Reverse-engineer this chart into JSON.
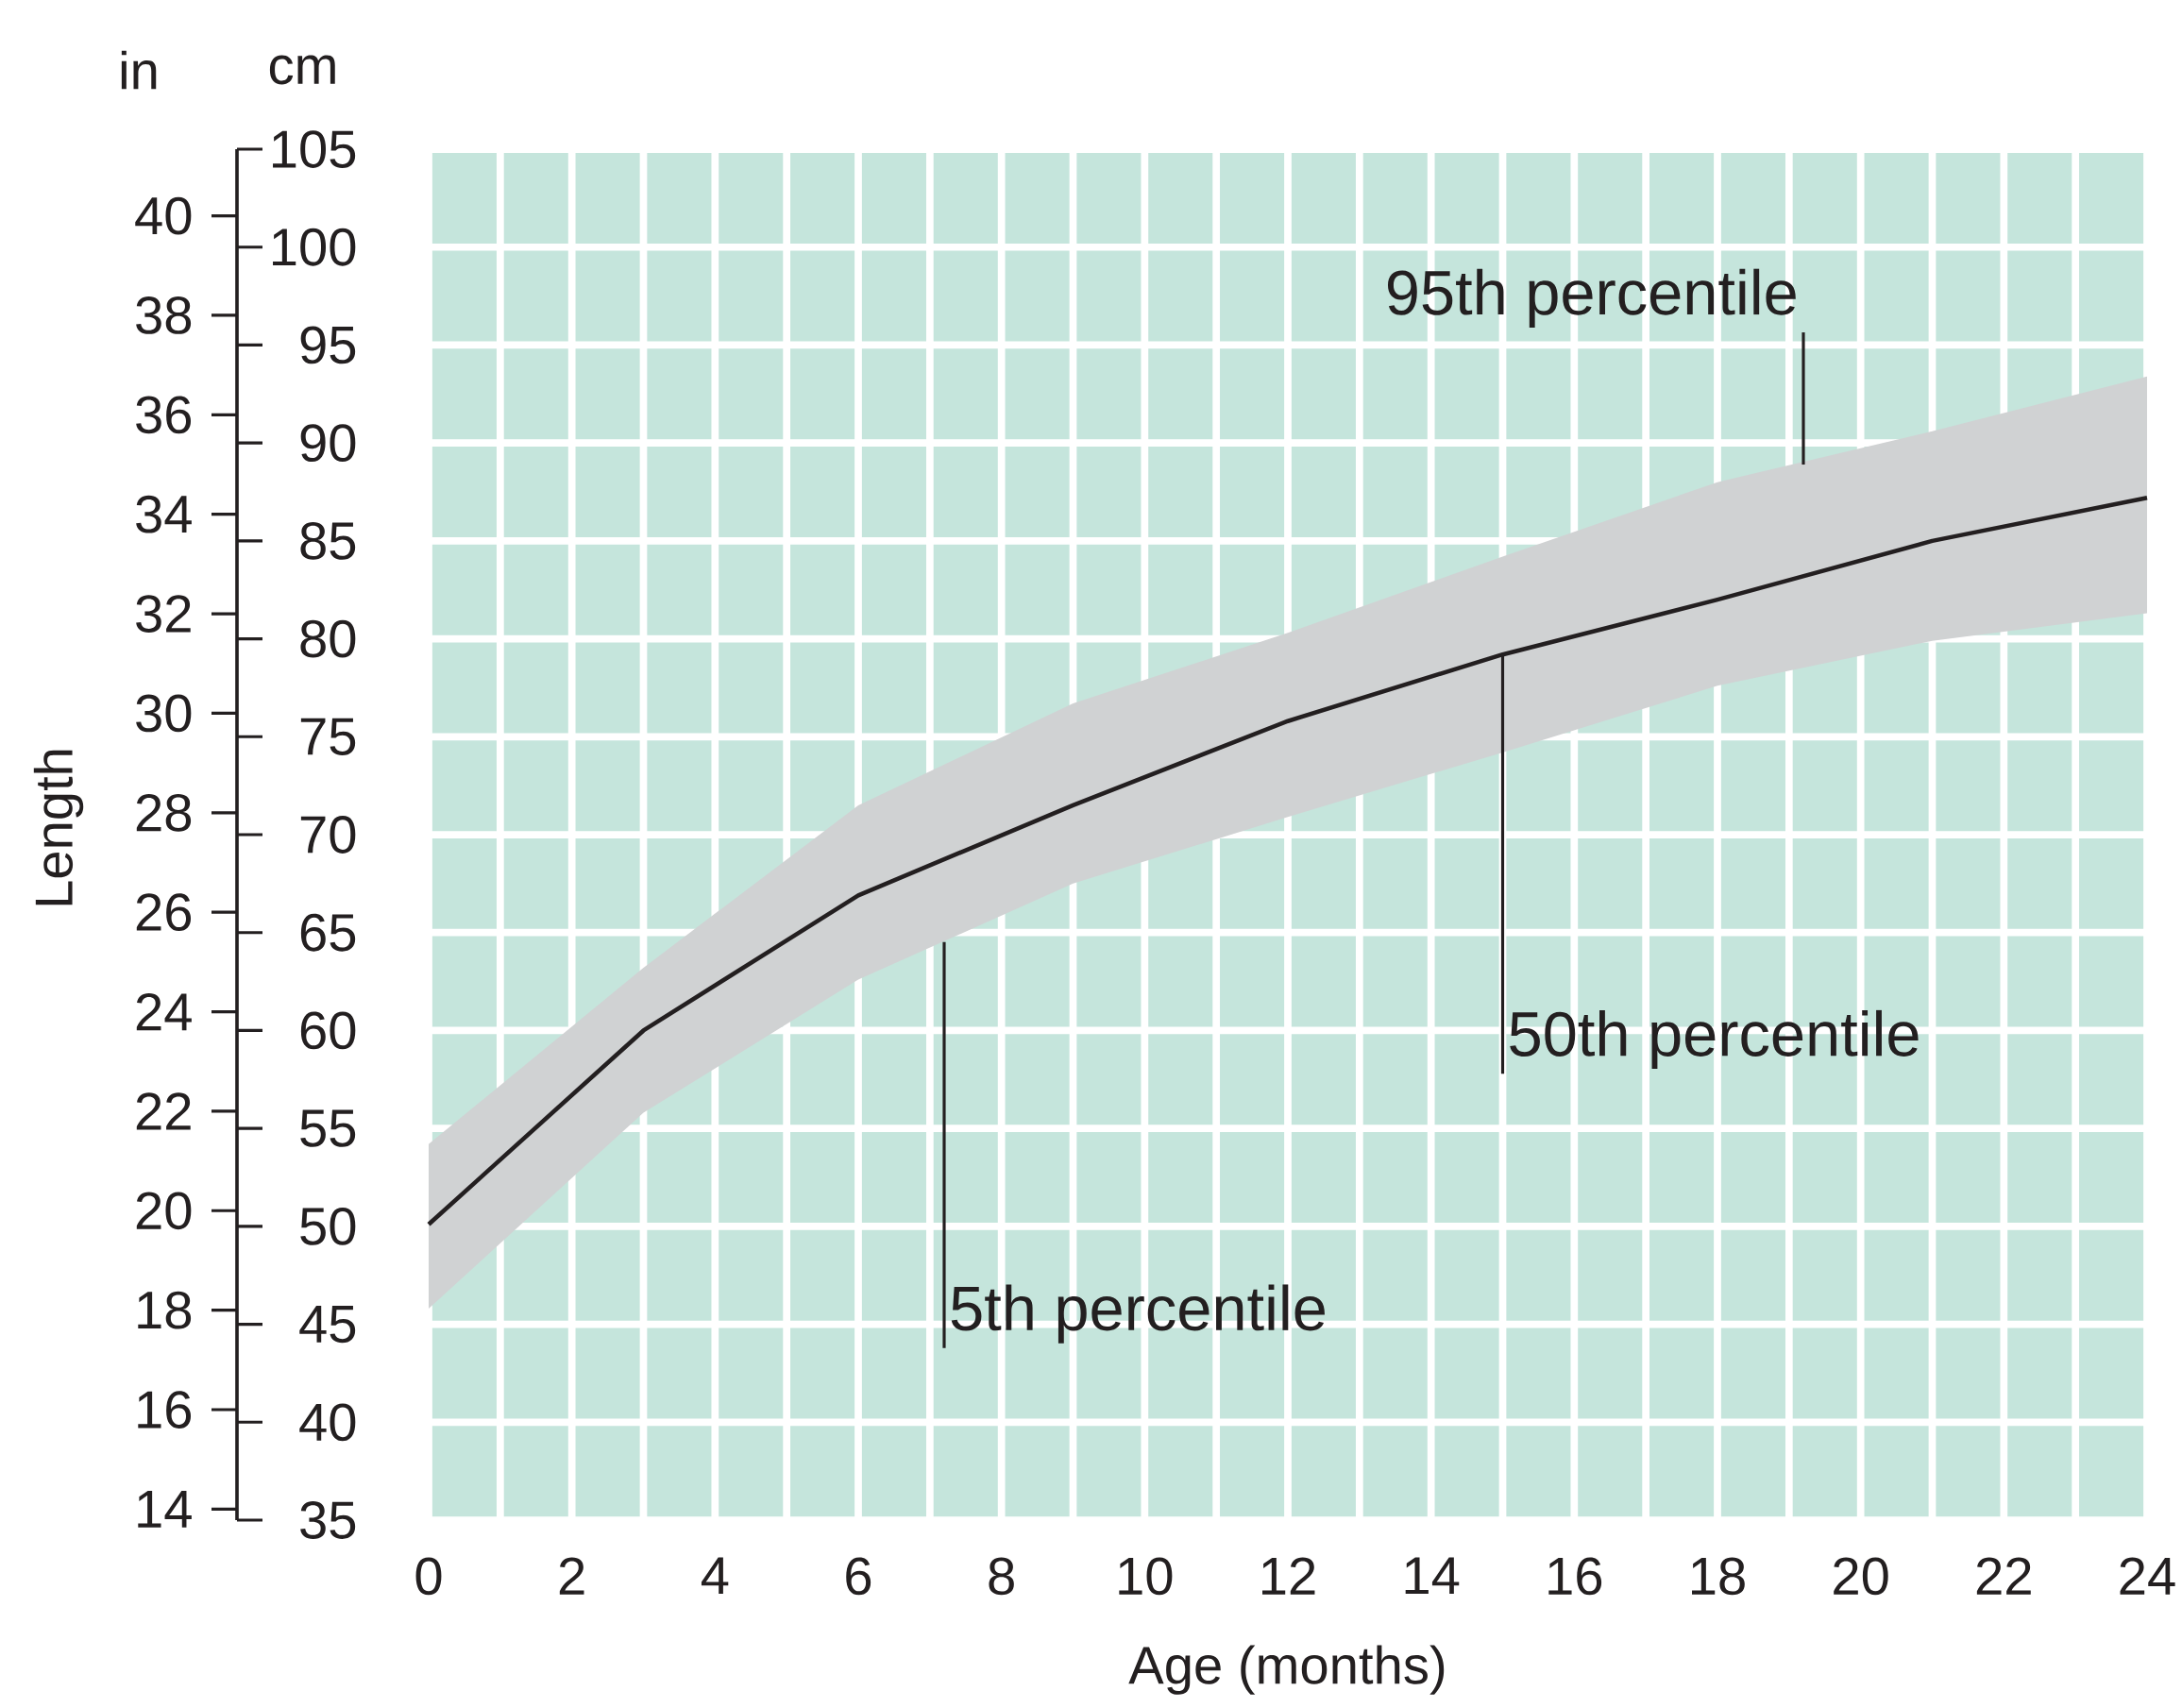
{
  "chart_data": {
    "type": "line",
    "xlabel": "Age (months)",
    "ylabel": "Length",
    "y2label": "cm",
    "x": [
      0,
      3,
      6,
      9,
      12,
      15,
      18,
      21,
      24
    ],
    "series": [
      {
        "color": "#231f20",
        "axis": "y2",
        "values": [
          50.1,
          60.0,
          66.9,
          71.5,
          75.8,
          79.2,
          82.0,
          85.0,
          87.2
        ],
        "lower": [
          45.8,
          55.8,
          62.6,
          67.5,
          70.9,
          74.2,
          77.6,
          79.9,
          81.3
        ],
        "upper": [
          54.2,
          63.2,
          71.5,
          76.7,
          80.3,
          84.2,
          88.0,
          90.6,
          93.4
        ]
      }
    ],
    "xlim": [
      0,
      24
    ],
    "xticks": [
      0,
      2,
      4,
      6,
      8,
      10,
      12,
      14,
      16,
      18,
      20,
      22,
      24
    ],
    "ylim": [
      13.78,
      41.34
    ],
    "yticks": [
      14,
      16,
      18,
      20,
      22,
      24,
      26,
      28,
      30,
      32,
      34,
      36,
      38,
      40
    ],
    "y2lim": [
      35,
      105
    ],
    "y2ticks": [
      35,
      40,
      45,
      50,
      55,
      60,
      65,
      70,
      75,
      80,
      85,
      90,
      95,
      100,
      105
    ],
    "grid": true,
    "annotations": [
      "in",
      {
        "text": "95th percentile",
        "x": 19.2,
        "y": 35.0
      },
      {
        "text": "50th percentile",
        "x": 15,
        "y": 31.2
      },
      {
        "text": "5th percentile",
        "x": 7.2,
        "y": 25.4
      }
    ]
  }
}
